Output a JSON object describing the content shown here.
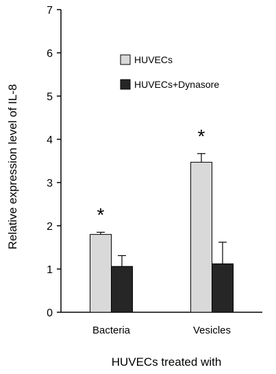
{
  "chart_data": {
    "type": "bar",
    "categories": [
      "Bacteria",
      "Vesicles"
    ],
    "series": [
      {
        "name": "HUVECs",
        "values": [
          1.8,
          3.47
        ],
        "errors": [
          0.05,
          0.2
        ],
        "color": "#d9d9d9",
        "sig": [
          "*",
          "*"
        ]
      },
      {
        "name": "HUVECs+Dynasore",
        "values": [
          1.06,
          1.12
        ],
        "errors": [
          0.25,
          0.5
        ],
        "color": "#262626",
        "sig": [
          "",
          ""
        ]
      }
    ],
    "title": "",
    "xlabel": "HUVECs treated with",
    "ylabel": "Relative expression level of IL-8",
    "ylim": [
      0,
      7
    ],
    "yticks": [
      0,
      1,
      2,
      3,
      4,
      5,
      6,
      7
    ],
    "grid": false,
    "legend_position": "top-right"
  }
}
